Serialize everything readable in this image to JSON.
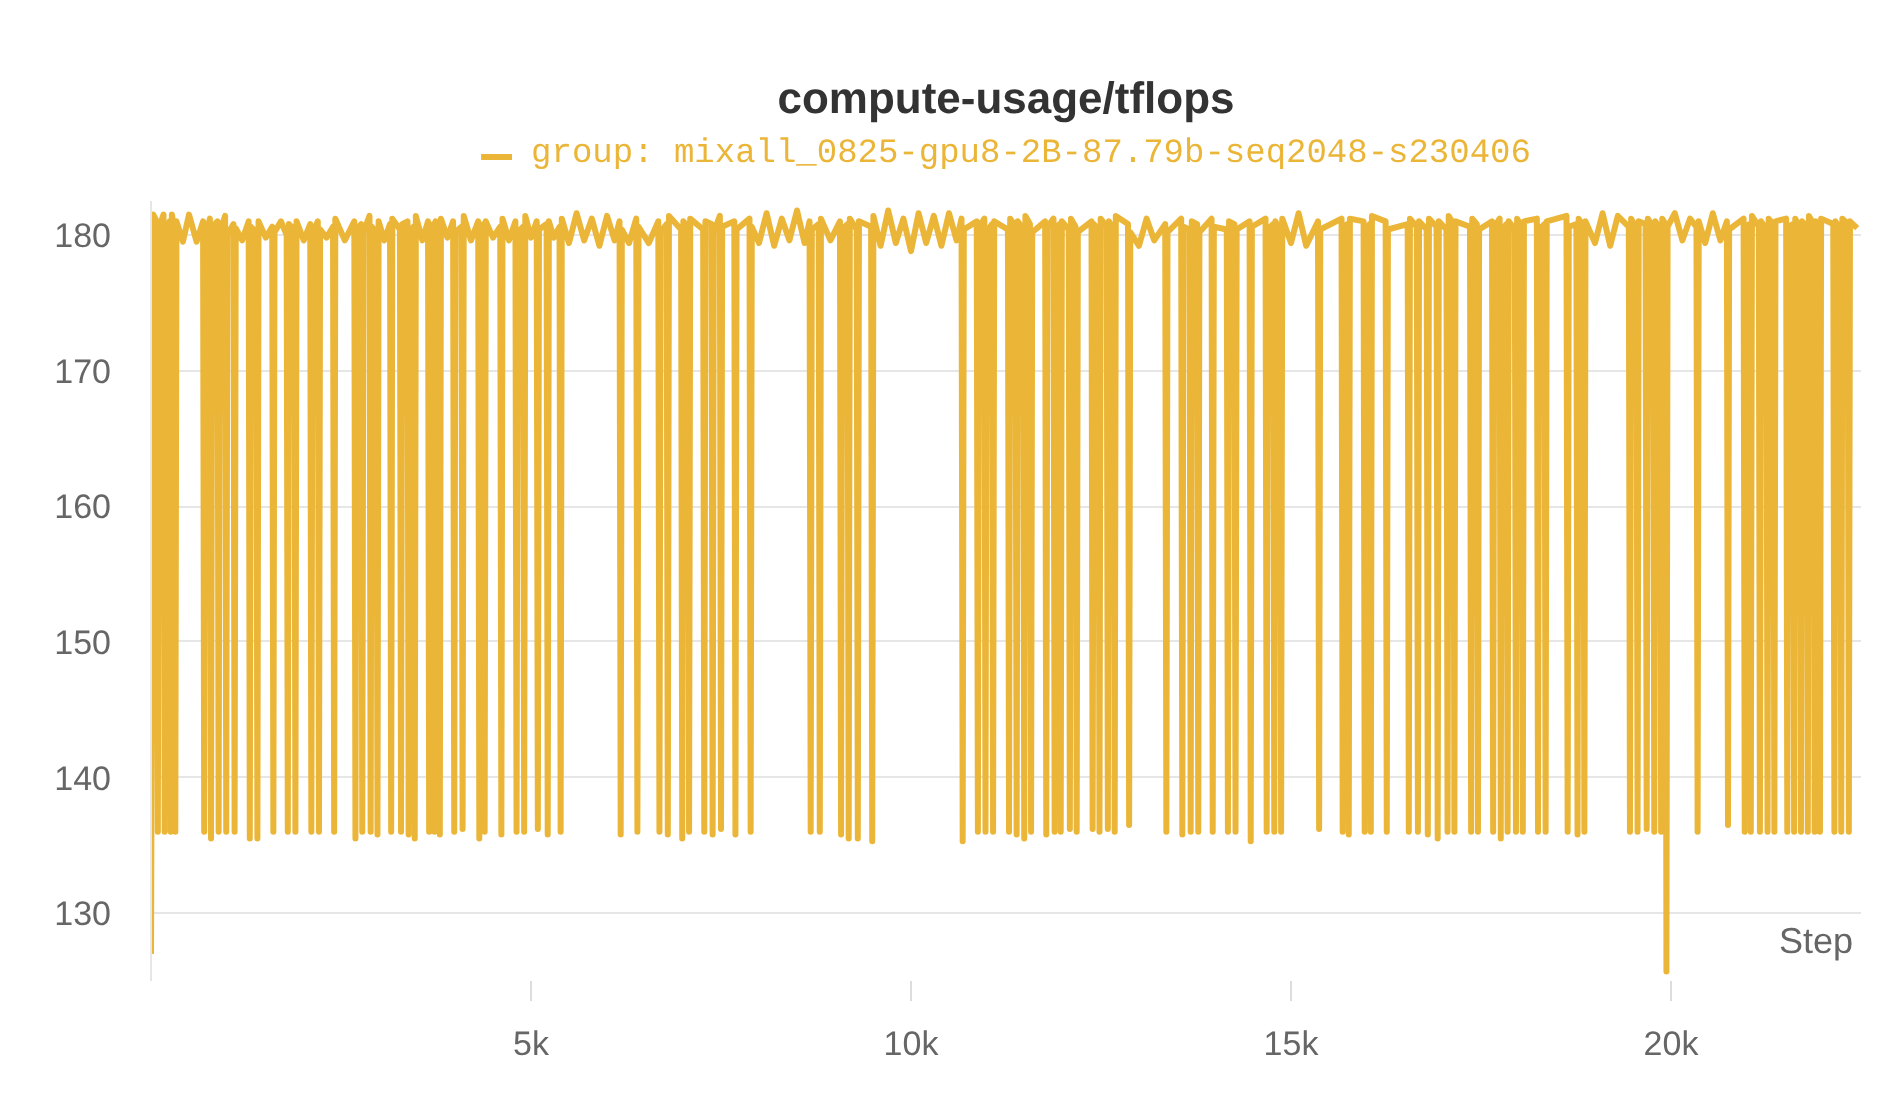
{
  "chart_data": {
    "type": "line",
    "title": "compute-usage/tflops",
    "xlabel": "Step",
    "xlim": [
      0,
      22500
    ],
    "ylim": [
      125,
      182.5
    ],
    "xticks": [
      {
        "value": 5000,
        "label": "5k"
      },
      {
        "value": 10000,
        "label": "10k"
      },
      {
        "value": 15000,
        "label": "15k"
      },
      {
        "value": 20000,
        "label": "20k"
      }
    ],
    "yticks": [
      130,
      140,
      150,
      160,
      170,
      180
    ],
    "grid": "y",
    "legend": "top",
    "series": [
      {
        "name": "group: mixall_0825-gpu8-2B-87.79b-seq2048-s230406",
        "color": "#ebb638",
        "x": [
          0,
          30,
          75,
          90,
          105,
          165,
          180,
          195,
          245,
          260,
          275,
          305,
          320,
          335,
          420,
          500,
          600,
          685,
          700,
          715,
          775,
          790,
          805,
          875,
          890,
          905,
          975,
          990,
          1005,
          1085,
          1100,
          1115,
          1200,
          1285,
          1300,
          1315,
          1385,
          1400,
          1415,
          1510,
          1595,
          1610,
          1625,
          1710,
          1785,
          1800,
          1815,
          1885,
          1900,
          1915,
          2010,
          2095,
          2110,
          2125,
          2195,
          2210,
          2225,
          2310,
          2395,
          2410,
          2425,
          2550,
          2675,
          2690,
          2705,
          2765,
          2780,
          2795,
          2875,
          2890,
          2905,
          2965,
          2980,
          2995,
          3070,
          3145,
          3160,
          3175,
          3275,
          3290,
          3305,
          3375,
          3390,
          3405,
          3455,
          3470,
          3485,
          3570,
          3645,
          3660,
          3675,
          3715,
          3730,
          3745,
          3785,
          3800,
          3815,
          3900,
          3975,
          3990,
          4005,
          4085,
          4100,
          4115,
          4210,
          4305,
          4320,
          4335,
          4375,
          4390,
          4405,
          4500,
          4595,
          4610,
          4625,
          4710,
          4795,
          4810,
          4825,
          4895,
          4910,
          4925,
          5000,
          5075,
          5090,
          5105,
          5205,
          5220,
          5235,
          5300,
          5375,
          5390,
          5405,
          5500,
          5600,
          5700,
          5800,
          5900,
          6000,
          6100,
          6165,
          6180,
          6195,
          6290,
          6385,
          6400,
          6415,
          6550,
          6675,
          6690,
          6705,
          6785,
          6800,
          6815,
          6975,
          6990,
          7005,
          7065,
          7080,
          7095,
          7265,
          7280,
          7295,
          7375,
          7390,
          7405,
          7485,
          7500,
          7515,
          7675,
          7690,
          7705,
          7875,
          7890,
          7905,
          8000,
          8100,
          8200,
          8300,
          8400,
          8500,
          8600,
          8665,
          8680,
          8695,
          8785,
          8800,
          8815,
          8940,
          9065,
          9080,
          9095,
          9165,
          9180,
          9195,
          9285,
          9300,
          9315,
          9475,
          9490,
          9505,
          9600,
          9700,
          9800,
          9900,
          10000,
          10100,
          10200,
          10300,
          10400,
          10500,
          10600,
          10665,
          10680,
          10695,
          10865,
          10880,
          10895,
          10965,
          10980,
          10995,
          11065,
          11080,
          11095,
          11275,
          11290,
          11305,
          11375,
          11390,
          11405,
          11475,
          11490,
          11505,
          11565,
          11580,
          11595,
          11765,
          11780,
          11795,
          11875,
          11890,
          11905,
          11955,
          11970,
          11985,
          12075,
          12090,
          12105,
          12165,
          12180,
          12195,
          12375,
          12390,
          12405,
          12465,
          12480,
          12495,
          12575,
          12590,
          12605,
          12665,
          12680,
          12695,
          12855,
          12870,
          12885,
          13000,
          13100,
          13200,
          13345,
          13360,
          13375,
          13555,
          13570,
          13585,
          13665,
          13680,
          13695,
          13765,
          13780,
          13795,
          13955,
          13970,
          13985,
          14155,
          14170,
          14185,
          14255,
          14270,
          14285,
          14455,
          14470,
          14485,
          14665,
          14680,
          14695,
          14765,
          14780,
          14795,
          14855,
          14870,
          14885,
          15000,
          15100,
          15200,
          15355,
          15370,
          15385,
          15665,
          15680,
          15695,
          15745,
          15760,
          15775,
          15955,
          15970,
          15985,
          16035,
          16050,
          16065,
          16245,
          16260,
          16275,
          16535,
          16550,
          16565,
          16655,
          16670,
          16685,
          16785,
          16800,
          16815,
          16915,
          16930,
          16945,
          17045,
          17060,
          17075,
          17135,
          17150,
          17165,
          17355,
          17370,
          17385,
          17445,
          17460,
          17475,
          17645,
          17660,
          17675,
          17745,
          17760,
          17775,
          17835,
          17850,
          17865,
          17945,
          17960,
          17975,
          18035,
          18050,
          18065,
          18235,
          18250,
          18265,
          18335,
          18350,
          18365,
          18625,
          18640,
          18655,
          18755,
          18770,
          18785,
          18845,
          18860,
          18875,
          19000,
          19100,
          19200,
          19300,
          19445,
          19460,
          19475,
          19545,
          19560,
          19575,
          19665,
          19680,
          19695,
          19765,
          19780,
          19795,
          19855,
          19870,
          19885,
          19925,
          19940,
          19955,
          20050,
          20150,
          20250,
          20335,
          20350,
          20365,
          20450,
          20550,
          20650,
          20735,
          20750,
          20765,
          20955,
          20970,
          20985,
          21035,
          21050,
          21065,
          21155,
          21170,
          21185,
          21255,
          21270,
          21285,
          21345,
          21360,
          21375,
          21515,
          21530,
          21545,
          21605,
          21620,
          21635,
          21695,
          21710,
          21725,
          21785,
          21800,
          21815,
          21875,
          21890,
          21905,
          21945,
          21960,
          21975,
          22135,
          22150,
          22165,
          22225,
          22240,
          22255,
          22325,
          22340,
          22355,
          22450
        ],
        "values": [
          127,
          181.5,
          181,
          136,
          180.5,
          181.5,
          136,
          180,
          181,
          136,
          181.5,
          180.5,
          136,
          181,
          179.5,
          181.5,
          179.5,
          181,
          136,
          179.8,
          181.2,
          135.5,
          180.6,
          181,
          136,
          180.2,
          181.4,
          136,
          180,
          180.8,
          136,
          180.5,
          179.6,
          181,
          135.5,
          180.6,
          180.2,
          135.5,
          181,
          179.8,
          180.6,
          136,
          180.2,
          181,
          180,
          136,
          180.8,
          180.4,
          136,
          181,
          179.6,
          180.8,
          136,
          180.2,
          181,
          136,
          180.4,
          179.8,
          180.6,
          136,
          181.2,
          179.6,
          181,
          135.5,
          180.4,
          180.8,
          136,
          180.2,
          181.4,
          136,
          180.6,
          180.2,
          135.8,
          181,
          179.6,
          180.8,
          136,
          181.2,
          180.4,
          136,
          180.8,
          181,
          135.8,
          180.2,
          180.6,
          135.5,
          181.4,
          179.6,
          181,
          136,
          180.4,
          180.8,
          136,
          181,
          180.4,
          135.8,
          181.2,
          179.8,
          181,
          136,
          180.2,
          180.6,
          136.2,
          181.4,
          179.6,
          181,
          135.5,
          180.4,
          180.8,
          136,
          181,
          179.8,
          180.6,
          135.8,
          181.2,
          179.6,
          181,
          136,
          180.2,
          180.6,
          136,
          181.4,
          179.8,
          181,
          136.2,
          180.4,
          180.8,
          135.8,
          181,
          179.8,
          180.6,
          136,
          181.2,
          179.4,
          181.6,
          179.6,
          181.2,
          179.2,
          181.4,
          179.6,
          181,
          135.8,
          180.4,
          179.4,
          181.2,
          136,
          180.6,
          179.4,
          181,
          136,
          180.2,
          180.8,
          135.8,
          181.4,
          180.4,
          135.5,
          181,
          180.6,
          136,
          181.2,
          180.4,
          136,
          181,
          180.8,
          135.8,
          180.2,
          181.4,
          136.2,
          180.6,
          181,
          135.8,
          180.4,
          181.2,
          136,
          180.6,
          179.4,
          181.6,
          179.2,
          181.2,
          179.6,
          181.8,
          179.4,
          181,
          136,
          180.4,
          180.8,
          136,
          181.2,
          179.6,
          181,
          135.8,
          180.4,
          180.8,
          135.5,
          181.2,
          180.4,
          135.5,
          181,
          180.6,
          135.3,
          181.4,
          179.2,
          181.8,
          179.4,
          181.2,
          178.8,
          181.6,
          179.4,
          181.4,
          179.2,
          181.6,
          179.6,
          181.2,
          135.3,
          180.4,
          181,
          136,
          180.6,
          181.2,
          136,
          180.2,
          180.8,
          136,
          181,
          180.4,
          136,
          181.2,
          180.6,
          135.8,
          181,
          180.4,
          135.5,
          181.4,
          180.8,
          136,
          180.2,
          181,
          135.8,
          180.6,
          181.2,
          136,
          180.4,
          180.8,
          136,
          181,
          180.4,
          136.2,
          181.2,
          180.6,
          136,
          180.2,
          181,
          136.2,
          180.8,
          180.4,
          136,
          181.2,
          180.6,
          136.2,
          181,
          180.4,
          136,
          181.4,
          180.8,
          136.5,
          180.2,
          179.2,
          181.2,
          179.6,
          180.8,
          136,
          180.2,
          181.2,
          135.8,
          180.6,
          180.4,
          136,
          181,
          180.8,
          136,
          180.2,
          181.2,
          136,
          180.6,
          180.4,
          136,
          181,
          180.8,
          136,
          180.4,
          181,
          135.3,
          180.6,
          181.2,
          136,
          180.4,
          180.8,
          136,
          181,
          180.4,
          136,
          181.2,
          179.4,
          181.6,
          179.2,
          181,
          136.2,
          180.4,
          181.2,
          136,
          180.6,
          180.8,
          135.8,
          181.2,
          181,
          136,
          180.2,
          180.8,
          136,
          181.4,
          181,
          136,
          180.4,
          180.8,
          136,
          181.2,
          180.6,
          136,
          181,
          180.4,
          135.8,
          181.2,
          180.6,
          135.5,
          181,
          180.4,
          136,
          181.4,
          180.8,
          136,
          181,
          180.6,
          136,
          181.2,
          180.8,
          136,
          180.4,
          181,
          136,
          180.6,
          181.2,
          135.5,
          180.4,
          180.8,
          136,
          181,
          180.4,
          136,
          181.2,
          180.6,
          136,
          181,
          181.2,
          136,
          180.4,
          180.8,
          136,
          181,
          181.4,
          136,
          180.6,
          180.8,
          135.8,
          181.2,
          180.6,
          136,
          181,
          179.4,
          181.6,
          179.2,
          181.4,
          180.6,
          136,
          181.2,
          180.4,
          136,
          181,
          180.8,
          136.2,
          181.2,
          180.6,
          136,
          181,
          180.4,
          136,
          181.2,
          180.8,
          125.7,
          180.6,
          181.6,
          179.6,
          181.2,
          180.6,
          136,
          181,
          179.4,
          181.6,
          179.6,
          181,
          136.5,
          180.4,
          181.2,
          136,
          180.6,
          180.8,
          136,
          181.4,
          180.6,
          136,
          181,
          180.4,
          136,
          181.2,
          180.8,
          136,
          181,
          181.2,
          136,
          180.6,
          180.8,
          136,
          181.2,
          180.4,
          136,
          181,
          180.6,
          136,
          181.4,
          180.8,
          136,
          181,
          180.4,
          136,
          181.2,
          180.8,
          136,
          181,
          180.4,
          136,
          181.2,
          180.8,
          136,
          181,
          180.5
        ]
      }
    ]
  }
}
